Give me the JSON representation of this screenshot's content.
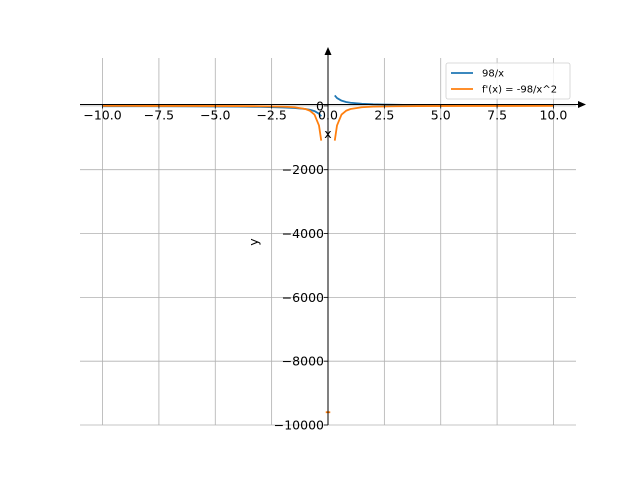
{
  "chart_data": {
    "type": "line",
    "title": "",
    "xlabel": "x",
    "ylabel": "y",
    "xlim": [
      -11,
      11
    ],
    "ylim": [
      -10000,
      1500
    ],
    "grid": true,
    "legend_position": "top-right",
    "x_ticks": [
      {
        "value": -10,
        "label": "−10.0"
      },
      {
        "value": -7.5,
        "label": "−7.5"
      },
      {
        "value": -5,
        "label": "−5.0"
      },
      {
        "value": -2.5,
        "label": "−2.5"
      },
      {
        "value": 0,
        "label": "0.0"
      },
      {
        "value": 2.5,
        "label": "2.5"
      },
      {
        "value": 5,
        "label": "5.0"
      },
      {
        "value": 7.5,
        "label": "7.5"
      },
      {
        "value": 10,
        "label": "10.0"
      }
    ],
    "y_ticks": [
      {
        "value": 0,
        "label": "0"
      },
      {
        "value": -2000,
        "label": "−2000"
      },
      {
        "value": -4000,
        "label": "−4000"
      },
      {
        "value": -6000,
        "label": "−6000"
      },
      {
        "value": -8000,
        "label": "−8000"
      },
      {
        "value": -10000,
        "label": "−10000"
      }
    ],
    "series": [
      {
        "name": "98/x",
        "color": "#1f77b4",
        "segments": [
          {
            "x": [
              -10,
              -8,
              -6,
              -4,
              -3,
              -2,
              -1.5,
              -1,
              -0.8,
              -0.6,
              -0.4,
              -0.3
            ],
            "y": [
              -9.8,
              -12.25,
              -16.33,
              -24.5,
              -32.67,
              -49,
              -65.33,
              -98,
              -122.5,
              -163.33,
              -245,
              -326.67
            ]
          },
          {
            "x": [
              0.3,
              0.4,
              0.6,
              0.8,
              1,
              1.5,
              2,
              3,
              4,
              6,
              8,
              10
            ],
            "y": [
              326.67,
              245,
              163.33,
              122.5,
              98,
              65.33,
              49,
              32.67,
              24.5,
              16.33,
              12.25,
              9.8
            ]
          }
        ]
      },
      {
        "name": "f'(x) = -98/x^2",
        "color": "#ff7f0e",
        "segments": [
          {
            "x": [
              -10,
              -8,
              -6,
              -4,
              -3,
              -2,
              -1.5,
              -1,
              -0.8,
              -0.6,
              -0.4,
              -0.3
            ],
            "y": [
              -0.98,
              -1.53,
              -2.72,
              -6.13,
              -10.89,
              -24.5,
              -43.56,
              -98,
              -153.13,
              -272.22,
              -612.5,
              -1088.89
            ]
          },
          {
            "x": [
              0.3,
              0.4,
              0.6,
              0.8,
              1,
              1.5,
              2,
              3,
              4,
              6,
              8,
              10
            ],
            "y": [
              -1088.89,
              -612.5,
              -272.22,
              -153.13,
              -98,
              -43.56,
              -24.5,
              -10.89,
              -6.13,
              -2.72,
              -1.53,
              -0.98
            ]
          },
          {
            "x": [
              -0.1,
              0.1
            ],
            "y": [
              -9600,
              -9600
            ]
          }
        ]
      }
    ]
  }
}
